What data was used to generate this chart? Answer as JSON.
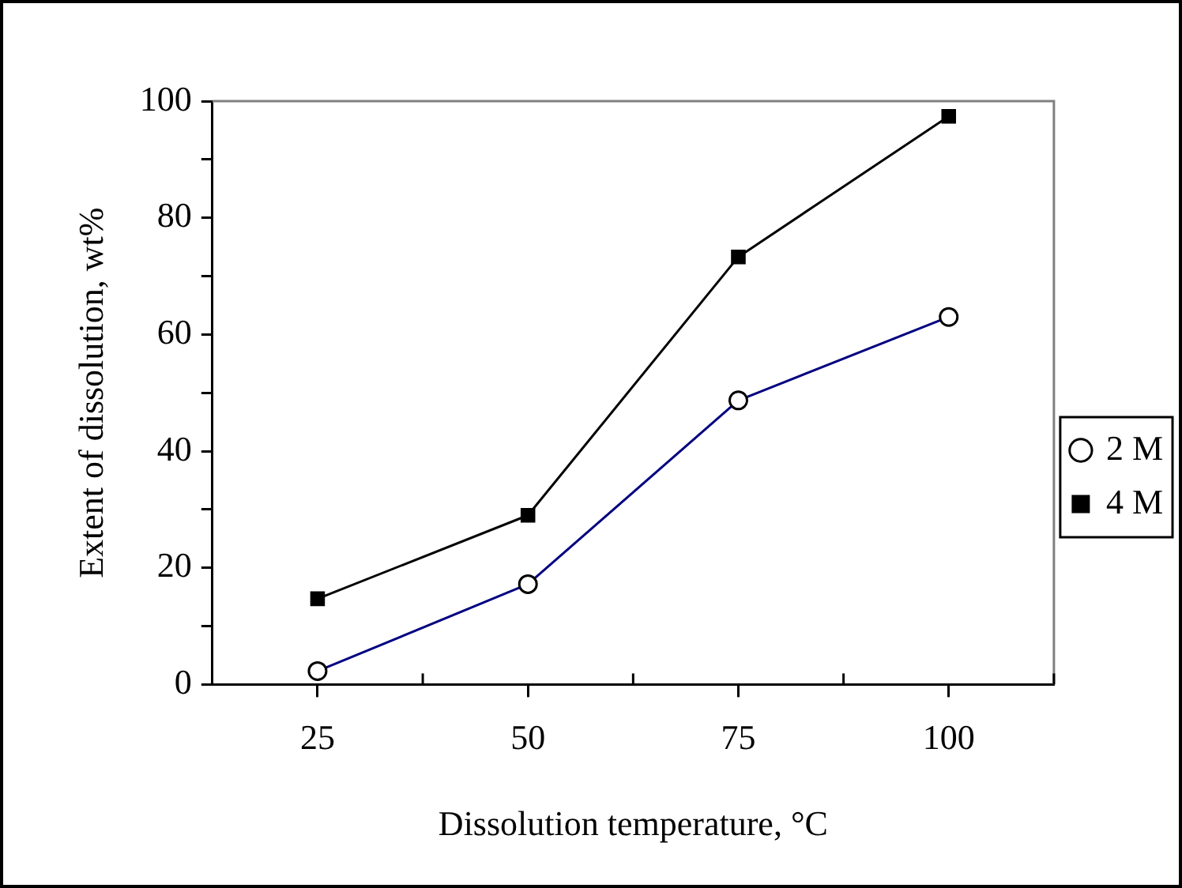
{
  "chart_data": {
    "type": "line",
    "xlabel": "Dissolution temperature, °C",
    "ylabel": "Extent of dissolution, wt%",
    "categories": [
      "25",
      "50",
      "75",
      "100"
    ],
    "series": [
      {
        "name": "2 M",
        "color": "#000080",
        "marker": "circle",
        "values": [
          2.3,
          17.2,
          48.7,
          63.0
        ]
      },
      {
        "name": "4 M",
        "color": "#000000",
        "marker": "square",
        "values": [
          14.7,
          29.0,
          73.3,
          97.4
        ]
      }
    ],
    "ylim": [
      0,
      100
    ],
    "yticks": [
      0,
      {
        "value": 10,
        "label": null
      },
      20,
      {
        "value": 30,
        "label": null
      },
      40,
      {
        "value": 50,
        "label": null
      },
      60,
      {
        "value": 70,
        "label": null
      },
      80,
      {
        "value": 90,
        "label": null
      },
      100
    ],
    "grid": false,
    "legend": "right",
    "line_style": "solid"
  }
}
